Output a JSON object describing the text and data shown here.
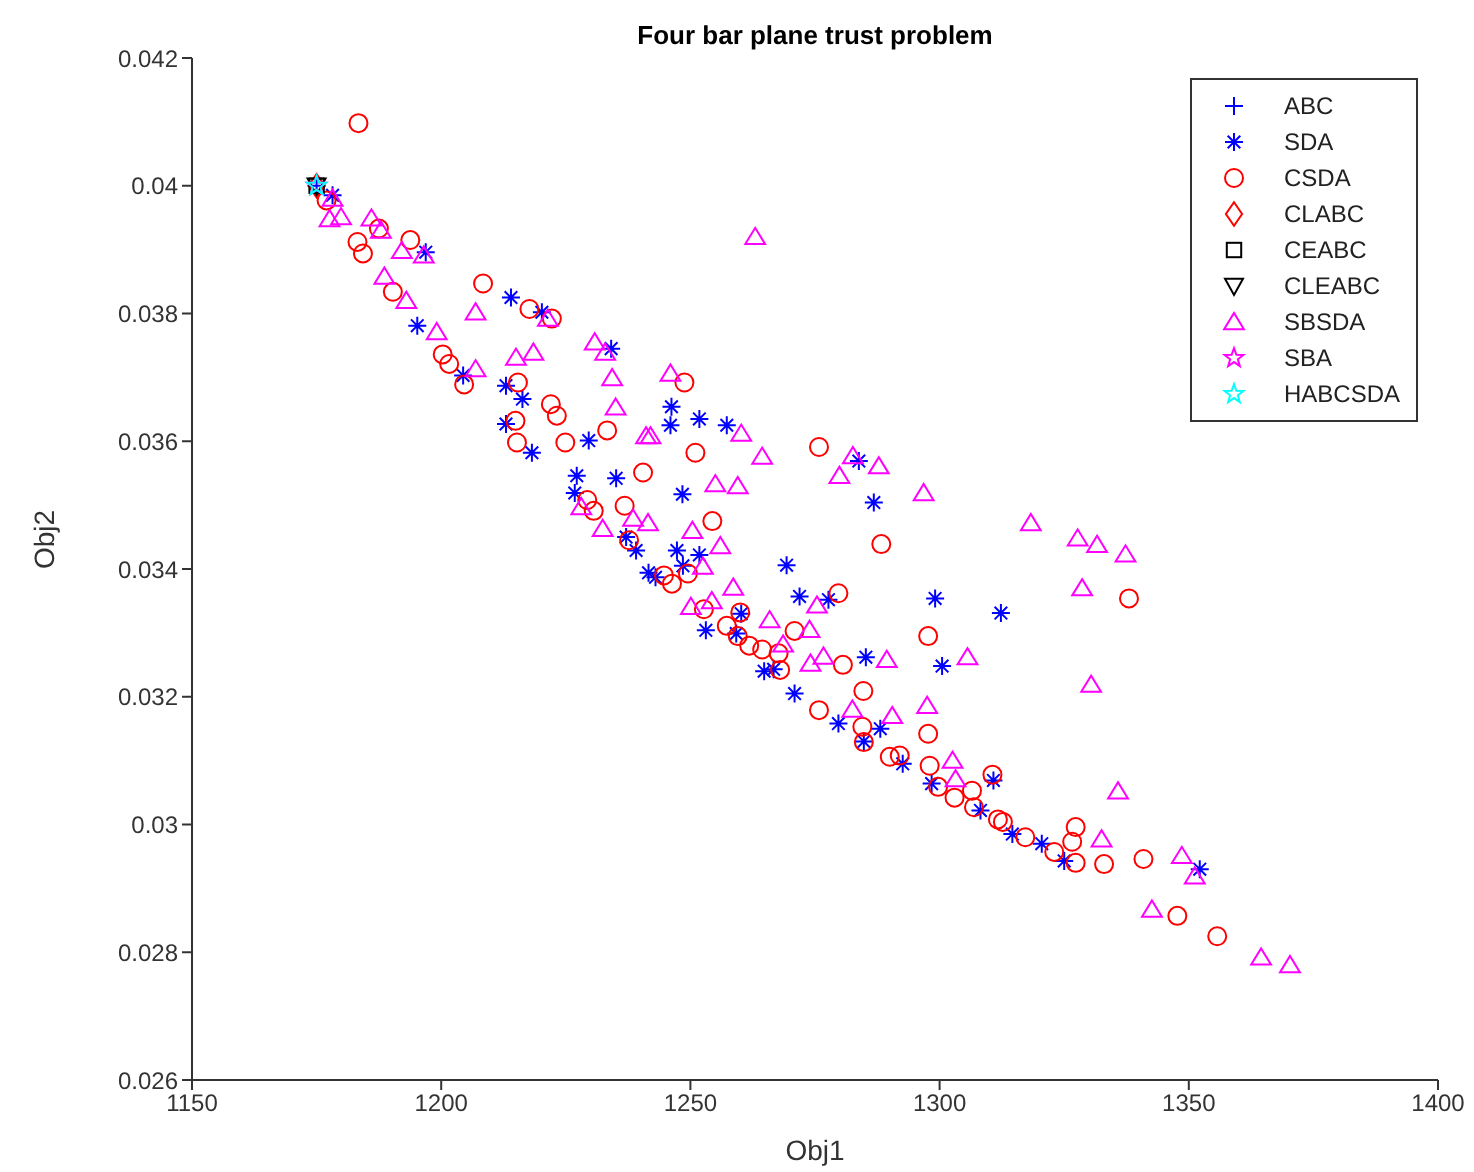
{
  "chart_data": {
    "type": "scatter",
    "title": "Four bar plane trust problem",
    "xlabel": "Obj1",
    "ylabel": "Obj2",
    "xlim": [
      1150,
      1400
    ],
    "xticks": [
      1150,
      1200,
      1250,
      1300,
      1350,
      1400
    ],
    "ylim": [
      0.026,
      0.042
    ],
    "yticks": [
      0.026,
      0.028,
      0.03,
      0.032,
      0.034,
      0.036,
      0.038,
      0.04,
      0.042
    ],
    "legend": "top right",
    "series": [
      {
        "name": "ABC",
        "color": "#0000ff",
        "x": [
          1175
        ],
        "values": [
          0.04
        ]
      },
      {
        "name": "SDA",
        "color": "#0000ff",
        "marker": "cross",
        "x": [
          1178.2,
          1196.9,
          1195.2,
          1214,
          1220.2,
          1204.4,
          1213,
          1216.3,
          1213,
          1218.2,
          1229.6,
          1234.1,
          1227.2,
          1246.2,
          1246,
          1251.8,
          1257.3,
          1248.4,
          1235.1,
          1247.3,
          1251.8,
          1248.5,
          1241.6,
          1243,
          1260.2,
          1253.1,
          1264.8,
          1266.7,
          1269.3,
          1226.8,
          1237.1,
          1239.1,
          1259.2,
          1283.8,
          1286.8,
          1271.9,
          1277.7,
          1299.1,
          1312.3,
          1285.2,
          1300.5,
          1270.9,
          1279.7,
          1288.1,
          1292.6,
          1298.4,
          1310.8,
          1308.2,
          1314.6,
          1320.5,
          1325,
          1352.2,
          1284.8
        ],
        "values": [
          0.03985,
          0.03896,
          0.03781,
          0.03825,
          0.03802,
          0.03703,
          0.03687,
          0.03666,
          0.03627,
          0.03582,
          0.03601,
          0.03745,
          0.03546,
          0.03654,
          0.03625,
          0.03635,
          0.03625,
          0.03517,
          0.03542,
          0.03429,
          0.03422,
          0.03405,
          0.03394,
          0.03387,
          0.0333,
          0.03304,
          0.0324,
          0.03243,
          0.03406,
          0.03519,
          0.0345,
          0.03429,
          0.03299,
          0.03569,
          0.03504,
          0.03357,
          0.03352,
          0.03354,
          0.03331,
          0.03262,
          0.03248,
          0.03205,
          0.03158,
          0.0315,
          0.03095,
          0.03064,
          0.03069,
          0.03022,
          0.02985,
          0.0297,
          0.02943,
          0.0293,
          0.0313
        ]
      },
      {
        "name": "CSDA",
        "color": "#ff0000",
        "marker": "circle",
        "x": [
          1183.4,
          1183.2,
          1184.3,
          1190.3,
          1208.4,
          1177,
          1193.8,
          1217.7,
          1222.2,
          1215.4,
          1214.9,
          1215.2,
          1222,
          1223.2,
          1224.9,
          1233.3,
          1200.3,
          1201.6,
          1204.6,
          1187.5,
          1248.8,
          1251,
          1240.5,
          1254.4,
          1229.3,
          1236.8,
          1244.7,
          1246.3,
          1249.5,
          1252.7,
          1260,
          1257.3,
          1259.5,
          1261.8,
          1264.4,
          1267.7,
          1268,
          1230.6,
          1237.7,
          1275.8,
          1288.3,
          1279.7,
          1270.9,
          1280.6,
          1284.7,
          1297.7,
          1297.7,
          1298,
          1284.5,
          1284.8,
          1292,
          1290,
          1338,
          1310.6,
          1306.5,
          1306.9,
          1312.7,
          1317.2,
          1327.3,
          1326.6,
          1327.3,
          1333,
          1340.9,
          1347.7,
          1355.7,
          1275.8,
          1299.7,
          1303,
          1323,
          1311.7
        ],
        "values": [
          0.04098,
          0.03912,
          0.03894,
          0.03834,
          0.03847,
          0.03977,
          0.03915,
          0.03807,
          0.03792,
          0.03692,
          0.03632,
          0.03598,
          0.03658,
          0.0364,
          0.03598,
          0.03617,
          0.03736,
          0.03721,
          0.03689,
          0.03933,
          0.03692,
          0.03582,
          0.03551,
          0.03475,
          0.03508,
          0.03499,
          0.0339,
          0.03377,
          0.03393,
          0.03337,
          0.03332,
          0.03311,
          0.03295,
          0.0328,
          0.03274,
          0.03268,
          0.03242,
          0.03491,
          0.03445,
          0.03591,
          0.03439,
          0.03362,
          0.03303,
          0.0325,
          0.03209,
          0.03295,
          0.03142,
          0.03092,
          0.03153,
          0.03129,
          0.03108,
          0.03106,
          0.03354,
          0.03078,
          0.03053,
          0.03027,
          0.03004,
          0.0298,
          0.02996,
          0.02973,
          0.0294,
          0.02938,
          0.02946,
          0.02857,
          0.02825,
          0.03179,
          0.03059,
          0.03042,
          0.02957,
          0.03008
        ]
      },
      {
        "name": "CLABC",
        "color": "#ff0000",
        "marker": "diamond",
        "x": [
          1175
        ],
        "values": [
          0.04
        ]
      },
      {
        "name": "CEABC",
        "color": "#000000",
        "marker": "square",
        "x": [
          1175
        ],
        "values": [
          0.04
        ]
      },
      {
        "name": "CLEABC",
        "color": "#000000",
        "marker": "triangle-down",
        "x": [
          1175
        ],
        "values": [
          0.04
        ]
      },
      {
        "name": "SBSDA",
        "color": "#ff00ff",
        "marker": "triangle",
        "x": [
          1177.6,
          1178.2,
          1179.9,
          1186,
          1187.9,
          1192.1,
          1188.6,
          1193,
          1196.5,
          1199.1,
          1206.9,
          1215,
          1218.5,
          1206.9,
          1230.8,
          1234.3,
          1235,
          1241.1,
          1221.4,
          1232.9,
          1263,
          1246,
          1242,
          1260.2,
          1264.4,
          1255,
          1259.5,
          1250.4,
          1256,
          1252.5,
          1258.6,
          1254.3,
          1250.1,
          1265.9,
          1268.6,
          1241.5,
          1238.5,
          1232.4,
          1228.1,
          1279.9,
          1282.6,
          1287.8,
          1296.8,
          1318.3,
          1327.7,
          1331.6,
          1337.3,
          1328.6,
          1330.4,
          1305.6,
          1289.4,
          1282.5,
          1290.5,
          1297.5,
          1302.6,
          1303.2,
          1335.8,
          1332.5,
          1348.6,
          1351.2,
          1342.6,
          1364.5,
          1370.3,
          1275.4,
          1273.9,
          1276.7,
          1274.1
        ],
        "values": [
          0.03948,
          0.0398,
          0.03951,
          0.03949,
          0.0393,
          0.03898,
          0.03858,
          0.0382,
          0.03891,
          0.03771,
          0.03802,
          0.03731,
          0.03739,
          0.03713,
          0.03755,
          0.03699,
          0.03653,
          0.03608,
          0.03792,
          0.03739,
          0.0392,
          0.03706,
          0.03608,
          0.03612,
          0.03576,
          0.03533,
          0.0353,
          0.0346,
          0.03436,
          0.03404,
          0.03371,
          0.0335,
          0.03341,
          0.0332,
          0.03282,
          0.03472,
          0.03479,
          0.03463,
          0.03497,
          0.03546,
          0.03577,
          0.03561,
          0.03519,
          0.03472,
          0.03448,
          0.03438,
          0.03423,
          0.0337,
          0.03219,
          0.03262,
          0.03258,
          0.0318,
          0.0317,
          0.03186,
          0.031,
          0.03071,
          0.03052,
          0.02977,
          0.02951,
          0.02919,
          0.02867,
          0.02792,
          0.0278,
          0.03343,
          0.03305,
          0.03263,
          0.03252
        ]
      },
      {
        "name": "SBA",
        "color": "#ff00ff",
        "marker": "star",
        "x": [
          1175
        ],
        "values": [
          0.04
        ]
      },
      {
        "name": "HABCSDA",
        "color": "#00ffff",
        "marker": "star",
        "x": [
          1175
        ],
        "values": [
          0.04
        ]
      }
    ]
  }
}
